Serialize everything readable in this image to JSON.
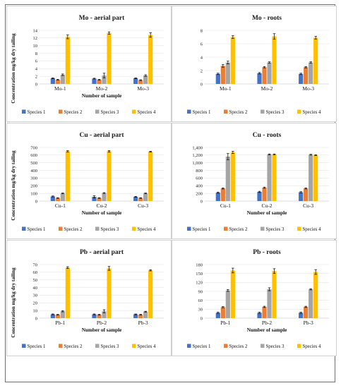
{
  "colors": {
    "s1": "#4472c4",
    "s2": "#ed7d31",
    "s3": "#a5a5a5",
    "s4": "#ffc000"
  },
  "chart_data": [
    {
      "type": "bar",
      "title": "Mo - aerial part",
      "categories": [
        "Mo-1",
        "Mo-2",
        "Mo-3"
      ],
      "xlabel": "Number of sample",
      "ylabel": "Concentration mg/kg dry tailing",
      "ylim": [
        0,
        14
      ],
      "yticks": [
        "0",
        "2",
        "4",
        "6",
        "8",
        "10",
        "12",
        "14"
      ],
      "series": [
        {
          "name": "Species 1",
          "values": [
            1.5,
            1.4,
            1.5
          ],
          "err": [
            0.1,
            0.1,
            0.1
          ]
        },
        {
          "name": "Species 2",
          "values": [
            1.1,
            1.1,
            1.0
          ],
          "err": [
            0.1,
            0.1,
            0.1
          ]
        },
        {
          "name": "Species 3",
          "values": [
            2.4,
            2.2,
            2.2
          ],
          "err": [
            0.2,
            0.6,
            0.2
          ]
        },
        {
          "name": "Species 4",
          "values": [
            12.3,
            13.3,
            12.8
          ],
          "err": [
            0.5,
            0.3,
            0.6
          ]
        }
      ]
    },
    {
      "type": "bar",
      "title": "Mo - roots",
      "categories": [
        "Mo-1",
        "Mo-2",
        "Mo-3"
      ],
      "xlabel": "",
      "ylabel": "",
      "ylim": [
        0,
        8
      ],
      "yticks": [
        "0",
        "2",
        "4",
        "6",
        "8"
      ],
      "series": [
        {
          "name": "Species 1",
          "values": [
            1.5,
            1.6,
            1.5
          ],
          "err": [
            0.1,
            0.1,
            0.1
          ]
        },
        {
          "name": "Species 2",
          "values": [
            2.7,
            2.5,
            2.5
          ],
          "err": [
            0.2,
            0.1,
            0.1
          ]
        },
        {
          "name": "Species 3",
          "values": [
            3.2,
            3.2,
            3.2
          ],
          "err": [
            0.2,
            0.1,
            0.1
          ]
        },
        {
          "name": "Species 4",
          "values": [
            7.0,
            7.1,
            6.9
          ],
          "err": [
            0.2,
            0.4,
            0.2
          ]
        }
      ]
    },
    {
      "type": "bar",
      "title": "Cu - aerial part",
      "categories": [
        "Cu-1",
        "Cu-2",
        "Cu-3"
      ],
      "xlabel": "Number of sample",
      "ylabel": "Concentration mg/kg dry tailing",
      "ylim": [
        0,
        700
      ],
      "yticks": [
        "0",
        "100",
        "200",
        "300",
        "400",
        "500",
        "600",
        "700"
      ],
      "series": [
        {
          "name": "Species 1",
          "values": [
            60,
            55,
            55
          ],
          "err": [
            6,
            15,
            6
          ]
        },
        {
          "name": "Species 2",
          "values": [
            40,
            40,
            40
          ],
          "err": [
            3,
            3,
            3
          ]
        },
        {
          "name": "Species 3",
          "values": [
            100,
            105,
            100
          ],
          "err": [
            5,
            5,
            5
          ]
        },
        {
          "name": "Species 4",
          "values": [
            650,
            650,
            645
          ],
          "err": [
            8,
            10,
            5
          ]
        }
      ]
    },
    {
      "type": "bar",
      "title": "Cu - roots",
      "categories": [
        "Cu-1",
        "Cu-2",
        "Cu-3"
      ],
      "xlabel": "Number of sample",
      "ylabel": "",
      "ylim": [
        0,
        1400
      ],
      "yticks": [
        "0",
        "200",
        "400",
        "600",
        "800",
        "1,000",
        "1,200",
        "1,400"
      ],
      "series": [
        {
          "name": "Species 1",
          "values": [
            220,
            240,
            230
          ],
          "err": [
            15,
            15,
            15
          ]
        },
        {
          "name": "Species 2",
          "values": [
            330,
            350,
            330
          ],
          "err": [
            15,
            15,
            15
          ]
        },
        {
          "name": "Species 3",
          "values": [
            1160,
            1220,
            1210
          ],
          "err": [
            80,
            10,
            10
          ]
        },
        {
          "name": "Species 4",
          "values": [
            1270,
            1220,
            1200
          ],
          "err": [
            30,
            10,
            10
          ]
        }
      ]
    },
    {
      "type": "bar",
      "title": "Pb - aerial part",
      "categories": [
        "Pb-1",
        "Pb-2",
        "Pb-3"
      ],
      "xlabel": "Number of sample",
      "ylabel": "Concentration mg/kg dry tailing",
      "ylim": [
        0,
        70
      ],
      "yticks": [
        "0",
        "10",
        "20",
        "30",
        "40",
        "50",
        "60",
        "70"
      ],
      "series": [
        {
          "name": "Species 1",
          "values": [
            5,
            5,
            5
          ],
          "err": [
            0.5,
            0.5,
            0.5
          ]
        },
        {
          "name": "Species 2",
          "values": [
            4.5,
            4.5,
            4.5
          ],
          "err": [
            0.4,
            0.4,
            0.4
          ]
        },
        {
          "name": "Species 3",
          "values": [
            9,
            9,
            8.5
          ],
          "err": [
            0.8,
            2,
            0.5
          ]
        },
        {
          "name": "Species 4",
          "values": [
            66,
            65,
            62.5
          ],
          "err": [
            1.2,
            2.5,
            0.8
          ]
        }
      ]
    },
    {
      "type": "bar",
      "title": "Pb - roots",
      "categories": [
        "Pb-1",
        "Pb-2",
        "Pb-3"
      ],
      "xlabel": "Number of sample",
      "ylabel": "",
      "ylim": [
        0,
        180
      ],
      "yticks": [
        "0",
        "30",
        "60",
        "90",
        "120",
        "150",
        "180"
      ],
      "series": [
        {
          "name": "Species 1",
          "values": [
            18,
            18,
            18
          ],
          "err": [
            2,
            2,
            2
          ]
        },
        {
          "name": "Species 2",
          "values": [
            37,
            38,
            38
          ],
          "err": [
            2,
            2,
            2
          ]
        },
        {
          "name": "Species 3",
          "values": [
            93,
            97,
            97
          ],
          "err": [
            3,
            5,
            2
          ]
        },
        {
          "name": "Species 4",
          "values": [
            160,
            158,
            155
          ],
          "err": [
            8,
            8,
            8
          ]
        }
      ]
    }
  ]
}
